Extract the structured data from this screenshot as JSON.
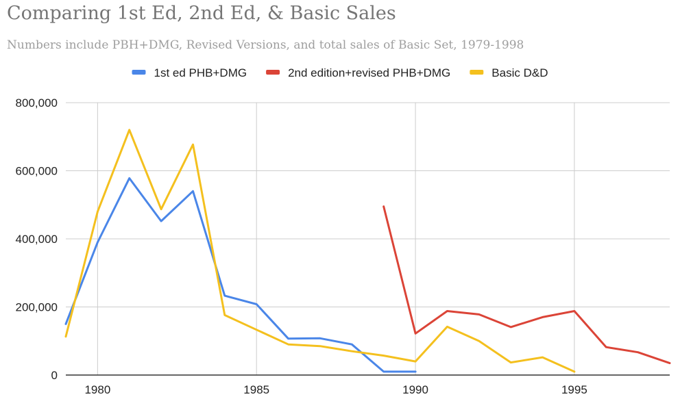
{
  "chart_data": {
    "type": "line",
    "title": "Comparing 1st Ed, 2nd Ed, & Basic Sales",
    "subtitle": "Numbers include PBH+DMG, Revised Versions, and total sales of Basic Set, 1979-1998",
    "xlabel": "",
    "ylabel": "",
    "xlim": [
      1979,
      1998
    ],
    "ylim": [
      0,
      800000
    ],
    "x_ticks": [
      1980,
      1985,
      1990,
      1995
    ],
    "y_ticks": [
      0,
      200000,
      400000,
      600000,
      800000
    ],
    "y_tick_labels": [
      "0",
      "200,000",
      "400,000",
      "600,000",
      "800,000"
    ],
    "grid": true,
    "legend_position": "top",
    "series": [
      {
        "name": "1st ed PHB+DMG",
        "color": "#4a86e8",
        "x": [
          1979,
          1980,
          1981,
          1982,
          1983,
          1984,
          1985,
          1986,
          1987,
          1988,
          1989,
          1990
        ],
        "values": [
          150000,
          390000,
          578000,
          452000,
          540000,
          233000,
          208000,
          107000,
          108000,
          90000,
          10000,
          10000
        ]
      },
      {
        "name": "2nd edition+revised PHB+DMG",
        "color": "#db4437",
        "x": [
          1989,
          1990,
          1991,
          1992,
          1993,
          1994,
          1995,
          1996,
          1997,
          1998
        ],
        "values": [
          495000,
          122000,
          188000,
          178000,
          141000,
          170000,
          188000,
          82000,
          67000,
          35000
        ]
      },
      {
        "name": "Basic D&D",
        "color": "#f4c01e",
        "x": [
          1979,
          1980,
          1981,
          1982,
          1983,
          1984,
          1985,
          1986,
          1987,
          1988,
          1989,
          1990,
          1991,
          1992,
          1993,
          1994,
          1995
        ],
        "values": [
          113000,
          480000,
          720000,
          487000,
          677000,
          176000,
          133000,
          90000,
          85000,
          70000,
          57000,
          40000,
          142000,
          100000,
          37000,
          52000,
          10000
        ]
      }
    ]
  }
}
